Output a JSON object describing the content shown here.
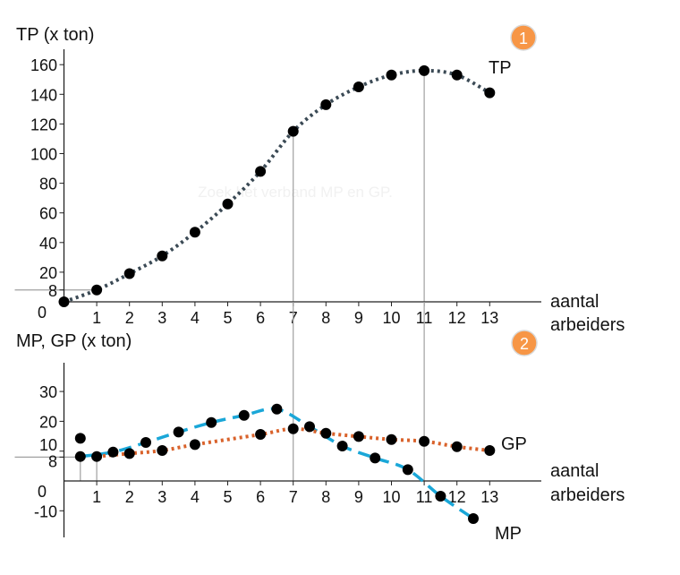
{
  "watermark": "Zoek het verband MP en GP.",
  "colors": {
    "tp": "#3b4a55",
    "mp": "#1aa7d8",
    "gp": "#d9622b",
    "badge": "#f79646",
    "guide": "#a0a0a0"
  },
  "chart_data": [
    {
      "type": "line",
      "title": "TP (x ton)",
      "badge": "1",
      "xlabel_lines": [
        "aantal",
        "arbeiders"
      ],
      "x_ticks": [
        "1",
        "2",
        "3",
        "4",
        "5",
        "6",
        "7",
        "8",
        "9",
        "10",
        "11",
        "12",
        "13"
      ],
      "y_ticks": [
        "0",
        "8",
        "20",
        "40",
        "60",
        "80",
        "100",
        "120",
        "140",
        "160"
      ],
      "xlim": [
        0,
        14.5
      ],
      "ylim": [
        0,
        170
      ],
      "grid": false,
      "guides": {
        "vertical_x": [
          7,
          11
        ],
        "horizontal_y": 8
      },
      "series": [
        {
          "name": "TP",
          "style": "dotted",
          "x": [
            0,
            1,
            2,
            3,
            4,
            5,
            6,
            7,
            8,
            9,
            10,
            11,
            12,
            13
          ],
          "y": [
            0,
            8,
            19,
            31,
            47,
            66,
            88,
            115,
            133,
            145,
            153,
            156,
            153,
            141
          ]
        }
      ]
    },
    {
      "type": "line",
      "title": "MP, GP (x ton)",
      "badge": "2",
      "xlabel_lines": [
        "aantal",
        "arbeiders"
      ],
      "x_ticks": [
        "1",
        "2",
        "3",
        "4",
        "5",
        "6",
        "7",
        "8",
        "9",
        "10",
        "11",
        "12",
        "13"
      ],
      "y_ticks": [
        "-10",
        "0",
        "8",
        "10",
        "20",
        "30"
      ],
      "xlim": [
        0,
        14.5
      ],
      "ylim": [
        -15,
        40
      ],
      "grid": false,
      "guides": {
        "vertical_x": [
          0.5,
          1,
          7,
          11
        ],
        "horizontal_y": 8
      },
      "extra_points": [
        {
          "x": 0.5,
          "y": 14.3
        }
      ],
      "series": [
        {
          "name": "MP",
          "style": "dashed",
          "x": [
            0.5,
            1.5,
            2.5,
            3.5,
            4.5,
            5.5,
            6.5,
            7.5,
            8.5,
            9.5,
            10.5,
            11.5,
            12.5
          ],
          "y": [
            8.2,
            9.7,
            12.9,
            16.4,
            19.6,
            22,
            24.1,
            18.2,
            11.7,
            7.7,
            3.8,
            -5.1,
            -12.6
          ]
        },
        {
          "name": "GP",
          "style": "dotted",
          "x": [
            1,
            2,
            3,
            4,
            6,
            7,
            8,
            9,
            10,
            11,
            12,
            13
          ],
          "y": [
            8.2,
            9.2,
            10.2,
            12.2,
            15.6,
            17.5,
            16,
            14.9,
            13.9,
            13.3,
            11.5,
            10.2
          ]
        }
      ]
    }
  ]
}
